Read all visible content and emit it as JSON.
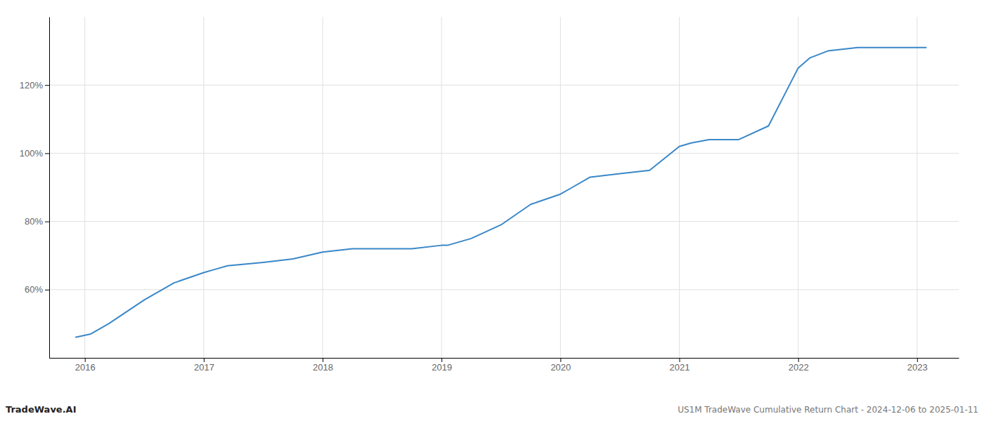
{
  "chart_data": {
    "type": "line",
    "title": "US1M TradeWave Cumulative Return Chart - 2024-12-06 to 2025-01-11",
    "annotations": [
      "TradeWave.AI"
    ],
    "color": "#3a87c8",
    "x": [
      2015.92,
      2016.05,
      2016.2,
      2016.5,
      2016.75,
      2017.0,
      2017.1,
      2017.2,
      2017.5,
      2017.75,
      2018.0,
      2018.25,
      2018.5,
      2018.75,
      2019.0,
      2019.05,
      2019.25,
      2019.5,
      2019.75,
      2020.0,
      2020.1,
      2020.25,
      2020.5,
      2020.75,
      2021.0,
      2021.1,
      2021.25,
      2021.5,
      2021.75,
      2022.0,
      2022.1,
      2022.25,
      2022.5,
      2022.75,
      2023.0,
      2023.08
    ],
    "values": [
      46,
      47,
      50,
      57,
      62,
      65,
      66,
      67,
      68,
      69,
      71,
      72,
      72,
      72,
      73,
      73,
      75,
      79,
      85,
      88,
      90,
      93,
      94,
      95,
      102,
      103,
      104,
      104,
      108,
      125,
      128,
      130,
      131,
      131,
      131,
      131
    ],
    "xlim": [
      2015.7,
      2023.35
    ],
    "ylim": [
      40,
      140
    ],
    "xticks": [
      2016,
      2017,
      2018,
      2019,
      2020,
      2021,
      2022,
      2023
    ],
    "yticks": [
      {
        "value": 60,
        "label": "60%"
      },
      {
        "value": 80,
        "label": "80%"
      },
      {
        "value": 100,
        "label": "100%"
      },
      {
        "value": 120,
        "label": "120%"
      }
    ],
    "grid": true
  }
}
